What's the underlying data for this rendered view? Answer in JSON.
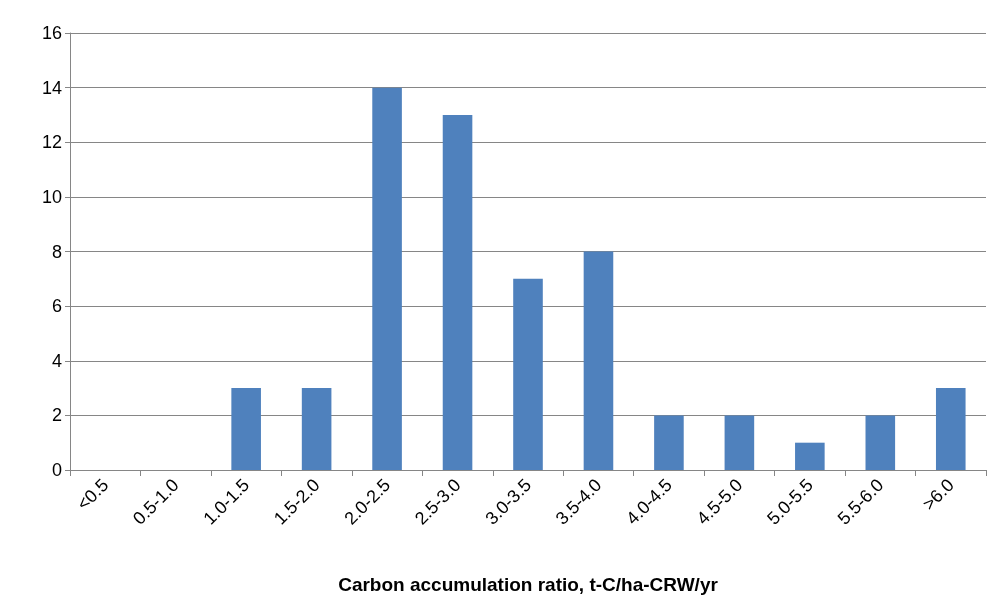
{
  "chart_data": {
    "type": "bar",
    "xlabel": "Carbon accumulation ratio, t-C/ha-CRW/yr",
    "categories": [
      "<0.5",
      "0.5-1.0",
      "1.0-1.5",
      "1.5-2.0",
      "2.0-2.5",
      "2.5-3.0",
      "3.0-3.5",
      "3.5-4.0",
      "4.0-4.5",
      "4.5-5.0",
      "5.0-5.5",
      "5.5-6.0",
      ">6.0"
    ],
    "values": [
      0,
      0,
      3,
      3,
      14,
      13,
      7,
      8,
      2,
      2,
      1,
      2,
      3
    ],
    "color": "#4f81bd",
    "ylim": [
      0,
      16
    ],
    "yticks": [
      0,
      2,
      4,
      6,
      8,
      10,
      12,
      14,
      16
    ],
    "grid": "y"
  }
}
